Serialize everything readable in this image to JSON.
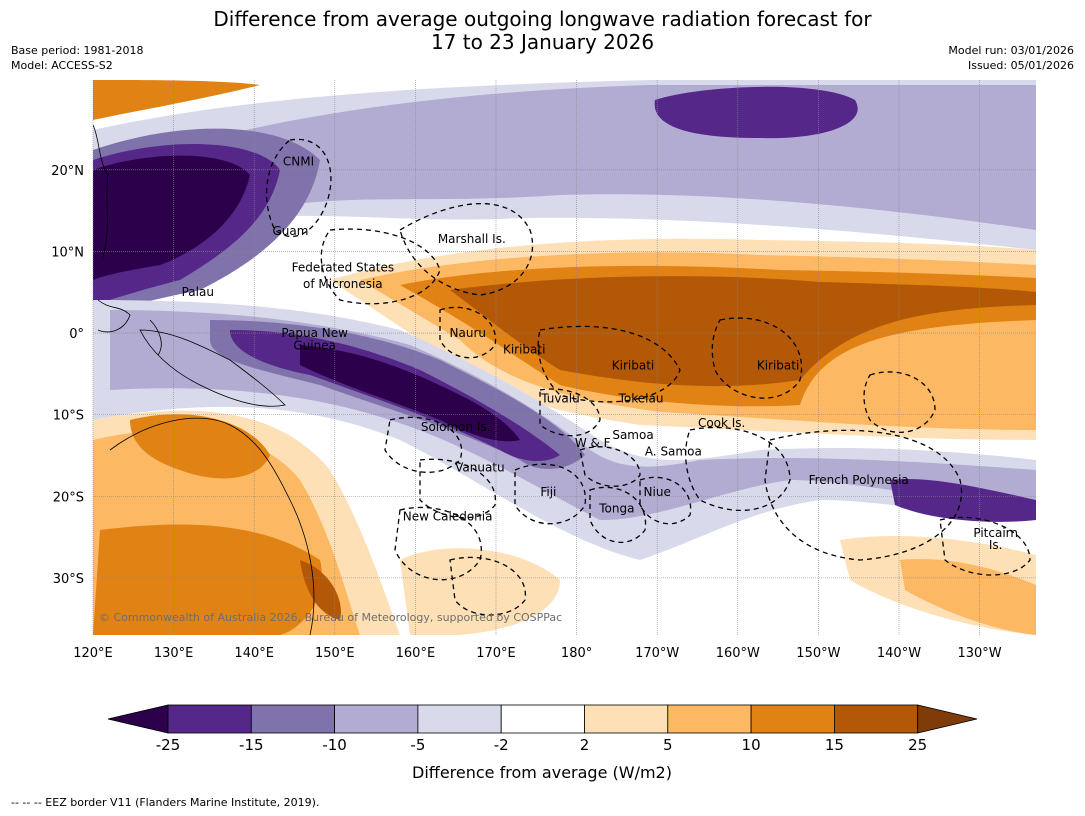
{
  "title_line1": "Difference from average outgoing longwave radiation forecast for",
  "title_line2": "17 to 23 January 2026",
  "base_period": "Base period: 1981-2018",
  "model": "Model: ACCESS-S2",
  "model_run": "Model run: 03/01/2026",
  "issued": "Issued: 05/01/2026",
  "map": {
    "extent": {
      "lon_min": 120,
      "lon_max": 237,
      "lat_min": -37,
      "lat_max": 31
    },
    "lat_labels": [
      "20°N",
      "10°N",
      "0°",
      "10°S",
      "20°S",
      "30°S"
    ],
    "lat_values": [
      20,
      10,
      0,
      -10,
      -20,
      -30
    ],
    "lon_labels": [
      "120°E",
      "130°E",
      "140°E",
      "150°E",
      "160°E",
      "170°E",
      "180°",
      "170°W",
      "160°W",
      "150°W",
      "140°W",
      "130°W"
    ],
    "lon_values": [
      120,
      130,
      140,
      150,
      160,
      170,
      180,
      190,
      200,
      210,
      220,
      230
    ],
    "copyright": "© Commonwealth of Australia 2026, Bureau of Meteorology, supported by COSPPac",
    "places": [
      {
        "name": "CNMI",
        "lon": 145.5,
        "lat": 21
      },
      {
        "name": "Guam",
        "lon": 144.5,
        "lat": 12.5
      },
      {
        "name": "Marshall Is.",
        "lon": 167,
        "lat": 11.5
      },
      {
        "name": "Federated States",
        "lon": 151,
        "lat": 8
      },
      {
        "name": "of Micronesia",
        "lon": 151,
        "lat": 6
      },
      {
        "name": "Palau",
        "lon": 133,
        "lat": 5
      },
      {
        "name": "Nauru",
        "lon": 166.5,
        "lat": 0
      },
      {
        "name": "Papua New",
        "lon": 147.5,
        "lat": 0
      },
      {
        "name": "Guinea",
        "lon": 147.5,
        "lat": -1.5
      },
      {
        "name": "Kiribati",
        "lon": 173.5,
        "lat": -2
      },
      {
        "name": "Kiribati",
        "lon": 187,
        "lat": -4
      },
      {
        "name": "Kiribati",
        "lon": 205,
        "lat": -4
      },
      {
        "name": "Tuvalu",
        "lon": 178,
        "lat": -8
      },
      {
        "name": "Tokelau",
        "lon": 188,
        "lat": -8
      },
      {
        "name": "Cook Is.",
        "lon": 198,
        "lat": -11
      },
      {
        "name": "Solomon Is.",
        "lon": 165,
        "lat": -11.5
      },
      {
        "name": "W & F",
        "lon": 182,
        "lat": -13.5
      },
      {
        "name": "Samoa",
        "lon": 187,
        "lat": -12.5
      },
      {
        "name": "A. Samoa",
        "lon": 192,
        "lat": -14.5
      },
      {
        "name": "Vanuatu",
        "lon": 168,
        "lat": -16.5
      },
      {
        "name": "French Polynesia",
        "lon": 215,
        "lat": -18
      },
      {
        "name": "Fiji",
        "lon": 176.5,
        "lat": -19.5
      },
      {
        "name": "Niue",
        "lon": 190,
        "lat": -19.5
      },
      {
        "name": "Tonga",
        "lon": 185,
        "lat": -21.5
      },
      {
        "name": "New Caledonia",
        "lon": 164,
        "lat": -22.5
      },
      {
        "name": "Pitcairn",
        "lon": 232,
        "lat": -24.5
      },
      {
        "name": "Is.",
        "lon": 232,
        "lat": -26
      }
    ]
  },
  "colorbar": {
    "ticks": [
      "-25",
      "-15",
      "-10",
      "-5",
      "-2",
      "2",
      "5",
      "10",
      "15",
      "25"
    ],
    "colors": [
      "#2d004b",
      "#542788",
      "#8073ac",
      "#b2abd2",
      "#d8daeb",
      "#ffffff",
      "#fee0b6",
      "#fdb863",
      "#e08214",
      "#b35806",
      "#7f3b08"
    ],
    "label": "Difference from average (W/m2)"
  },
  "footer": "--  --  -- EEZ border V11 (Flanders Marine Institute, 2019)."
}
